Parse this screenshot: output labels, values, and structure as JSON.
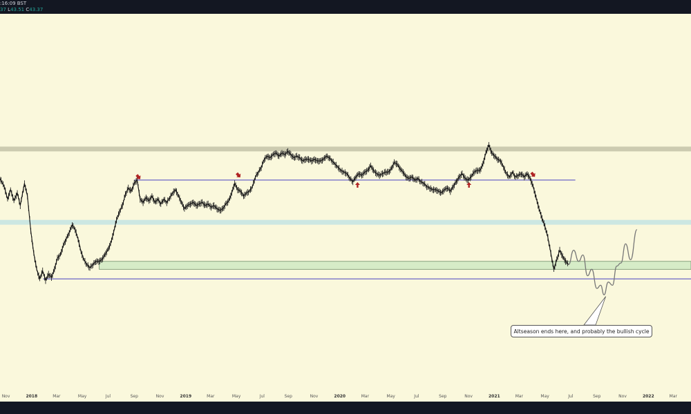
{
  "header": {
    "time_text": ":16:09 BST",
    "ohlc_text": [
      {
        "label": "37",
        "value": ""
      },
      {
        "label": "L",
        "value": "43.51"
      },
      {
        "label": "C",
        "value": "43.37"
      }
    ]
  },
  "annotation": {
    "text": "Altseason ends here, and probably the bullish cycle"
  },
  "chart_data": {
    "type": "line",
    "title": "",
    "x_axis": {
      "range": [
        "2017-10-18",
        "2022-04-12"
      ],
      "ticks": [
        {
          "label": "Nov",
          "date": "2017-11-01",
          "year": false
        },
        {
          "label": "2018",
          "date": "2018-01-01",
          "year": true
        },
        {
          "label": "Mar",
          "date": "2018-03-01",
          "year": false
        },
        {
          "label": "May",
          "date": "2018-05-01",
          "year": false
        },
        {
          "label": "Jul",
          "date": "2018-07-01",
          "year": false
        },
        {
          "label": "Sep",
          "date": "2018-09-01",
          "year": false
        },
        {
          "label": "Nov",
          "date": "2018-11-01",
          "year": false
        },
        {
          "label": "2019",
          "date": "2019-01-01",
          "year": true
        },
        {
          "label": "Mar",
          "date": "2019-03-01",
          "year": false
        },
        {
          "label": "May",
          "date": "2019-05-01",
          "year": false
        },
        {
          "label": "Jul",
          "date": "2019-07-01",
          "year": false
        },
        {
          "label": "Sep",
          "date": "2019-09-01",
          "year": false
        },
        {
          "label": "Nov",
          "date": "2019-11-01",
          "year": false
        },
        {
          "label": "2020",
          "date": "2020-01-01",
          "year": true
        },
        {
          "label": "Mar",
          "date": "2020-03-01",
          "year": false
        },
        {
          "label": "May",
          "date": "2020-05-01",
          "year": false
        },
        {
          "label": "Jul",
          "date": "2020-07-01",
          "year": false
        },
        {
          "label": "Sep",
          "date": "2020-09-01",
          "year": false
        },
        {
          "label": "Nov",
          "date": "2020-11-01",
          "year": false
        },
        {
          "label": "2021",
          "date": "2021-01-01",
          "year": true
        },
        {
          "label": "Mar",
          "date": "2021-03-01",
          "year": false
        },
        {
          "label": "May",
          "date": "2021-05-01",
          "year": false
        },
        {
          "label": "Jul",
          "date": "2021-07-01",
          "year": false
        },
        {
          "label": "Sep",
          "date": "2021-09-01",
          "year": false
        },
        {
          "label": "Nov",
          "date": "2021-11-01",
          "year": false
        },
        {
          "label": "2022",
          "date": "2022-01-01",
          "year": true
        },
        {
          "label": "Mar",
          "date": "2022-03-01",
          "year": false
        }
      ]
    },
    "y_axis": {
      "range": [
        0,
        100
      ],
      "labels_visible": false
    },
    "grid": false,
    "series": [
      {
        "kind": "price",
        "points": [
          [
            "2017-10-18",
            85
          ],
          [
            "2017-10-28",
            80
          ],
          [
            "2017-11-05",
            72
          ],
          [
            "2017-11-12",
            78
          ],
          [
            "2017-11-20",
            71
          ],
          [
            "2017-11-28",
            76
          ],
          [
            "2017-12-05",
            68
          ],
          [
            "2017-12-15",
            82
          ],
          [
            "2017-12-22",
            74
          ],
          [
            "2017-12-30",
            52
          ],
          [
            "2018-01-06",
            38
          ],
          [
            "2018-01-13",
            28
          ],
          [
            "2018-01-20",
            22
          ],
          [
            "2018-01-27",
            27
          ],
          [
            "2018-02-03",
            21
          ],
          [
            "2018-02-10",
            25
          ],
          [
            "2018-02-17",
            23
          ],
          [
            "2018-02-24",
            28
          ],
          [
            "2018-03-03",
            35
          ],
          [
            "2018-03-10",
            37
          ],
          [
            "2018-03-17",
            43
          ],
          [
            "2018-03-24",
            47
          ],
          [
            "2018-03-31",
            51
          ],
          [
            "2018-04-07",
            56
          ],
          [
            "2018-04-14",
            53
          ],
          [
            "2018-04-21",
            47
          ],
          [
            "2018-04-28",
            39
          ],
          [
            "2018-05-05",
            34
          ],
          [
            "2018-05-12",
            31
          ],
          [
            "2018-05-19",
            29
          ],
          [
            "2018-05-26",
            31
          ],
          [
            "2018-06-02",
            33
          ],
          [
            "2018-06-09",
            33
          ],
          [
            "2018-06-16",
            34
          ],
          [
            "2018-06-23",
            37
          ],
          [
            "2018-06-30",
            40
          ],
          [
            "2018-07-07",
            44
          ],
          [
            "2018-07-14",
            51
          ],
          [
            "2018-07-21",
            59
          ],
          [
            "2018-07-28",
            64
          ],
          [
            "2018-08-04",
            68
          ],
          [
            "2018-08-11",
            75
          ],
          [
            "2018-08-18",
            79
          ],
          [
            "2018-08-25",
            77
          ],
          [
            "2018-09-01",
            82
          ],
          [
            "2018-09-08",
            84
          ],
          [
            "2018-09-15",
            72
          ],
          [
            "2018-09-22",
            70
          ],
          [
            "2018-09-29",
            73
          ],
          [
            "2018-10-06",
            71
          ],
          [
            "2018-10-13",
            74
          ],
          [
            "2018-10-20",
            70
          ],
          [
            "2018-10-27",
            72
          ],
          [
            "2018-11-03",
            69
          ],
          [
            "2018-11-10",
            72
          ],
          [
            "2018-11-17",
            70
          ],
          [
            "2018-11-24",
            73
          ],
          [
            "2018-12-01",
            76
          ],
          [
            "2018-12-08",
            78
          ],
          [
            "2018-12-15",
            74
          ],
          [
            "2018-12-22",
            70
          ],
          [
            "2018-12-29",
            66
          ],
          [
            "2019-01-05",
            68
          ],
          [
            "2019-01-12",
            69
          ],
          [
            "2019-01-19",
            70
          ],
          [
            "2019-01-26",
            68
          ],
          [
            "2019-02-02",
            69
          ],
          [
            "2019-02-09",
            70
          ],
          [
            "2019-02-16",
            68
          ],
          [
            "2019-02-23",
            69
          ],
          [
            "2019-03-02",
            67
          ],
          [
            "2019-03-09",
            68
          ],
          [
            "2019-03-16",
            66
          ],
          [
            "2019-03-23",
            65
          ],
          [
            "2019-03-30",
            66
          ],
          [
            "2019-04-06",
            69
          ],
          [
            "2019-04-13",
            71
          ],
          [
            "2019-04-20",
            76
          ],
          [
            "2019-04-27",
            82
          ],
          [
            "2019-05-04",
            78
          ],
          [
            "2019-05-11",
            77
          ],
          [
            "2019-05-18",
            74
          ],
          [
            "2019-05-25",
            76
          ],
          [
            "2019-06-01",
            77
          ],
          [
            "2019-06-08",
            80
          ],
          [
            "2019-06-15",
            86
          ],
          [
            "2019-06-22",
            89
          ],
          [
            "2019-06-29",
            92
          ],
          [
            "2019-07-06",
            97
          ],
          [
            "2019-07-13",
            99
          ],
          [
            "2019-07-20",
            98
          ],
          [
            "2019-07-27",
            100
          ],
          [
            "2019-08-03",
            101
          ],
          [
            "2019-08-10",
            99
          ],
          [
            "2019-08-17",
            101
          ],
          [
            "2019-08-24",
            100
          ],
          [
            "2019-08-31",
            102
          ],
          [
            "2019-09-07",
            100
          ],
          [
            "2019-09-14",
            98
          ],
          [
            "2019-09-21",
            99
          ],
          [
            "2019-09-28",
            98
          ],
          [
            "2019-10-05",
            96
          ],
          [
            "2019-10-12",
            97
          ],
          [
            "2019-10-19",
            97
          ],
          [
            "2019-10-26",
            96
          ],
          [
            "2019-11-02",
            97
          ],
          [
            "2019-11-09",
            96
          ],
          [
            "2019-11-16",
            96
          ],
          [
            "2019-11-23",
            97
          ],
          [
            "2019-11-30",
            99
          ],
          [
            "2019-12-07",
            98
          ],
          [
            "2019-12-14",
            96
          ],
          [
            "2019-12-21",
            94
          ],
          [
            "2019-12-28",
            92
          ],
          [
            "2020-01-04",
            90
          ],
          [
            "2020-01-11",
            89
          ],
          [
            "2020-01-18",
            88
          ],
          [
            "2020-01-25",
            85
          ],
          [
            "2020-02-01",
            83
          ],
          [
            "2020-02-08",
            86
          ],
          [
            "2020-02-15",
            88
          ],
          [
            "2020-02-22",
            87
          ],
          [
            "2020-02-29",
            89
          ],
          [
            "2020-03-07",
            90
          ],
          [
            "2020-03-14",
            93
          ],
          [
            "2020-03-21",
            90
          ],
          [
            "2020-03-28",
            88
          ],
          [
            "2020-04-04",
            87
          ],
          [
            "2020-04-11",
            88
          ],
          [
            "2020-04-18",
            89
          ],
          [
            "2020-04-25",
            89
          ],
          [
            "2020-05-02",
            91
          ],
          [
            "2020-05-09",
            95
          ],
          [
            "2020-05-16",
            94
          ],
          [
            "2020-05-23",
            91
          ],
          [
            "2020-05-30",
            89
          ],
          [
            "2020-06-06",
            86
          ],
          [
            "2020-06-13",
            85
          ],
          [
            "2020-06-20",
            86
          ],
          [
            "2020-06-27",
            84
          ],
          [
            "2020-07-04",
            85
          ],
          [
            "2020-07-11",
            83
          ],
          [
            "2020-07-18",
            82
          ],
          [
            "2020-07-25",
            80
          ],
          [
            "2020-08-01",
            79
          ],
          [
            "2020-08-08",
            78
          ],
          [
            "2020-08-15",
            78
          ],
          [
            "2020-08-22",
            77
          ],
          [
            "2020-08-29",
            76
          ],
          [
            "2020-09-05",
            78
          ],
          [
            "2020-09-12",
            79
          ],
          [
            "2020-09-19",
            77
          ],
          [
            "2020-09-26",
            80
          ],
          [
            "2020-10-03",
            83
          ],
          [
            "2020-10-10",
            86
          ],
          [
            "2020-10-17",
            88
          ],
          [
            "2020-10-24",
            85
          ],
          [
            "2020-10-31",
            84
          ],
          [
            "2020-11-07",
            86
          ],
          [
            "2020-11-14",
            89
          ],
          [
            "2020-11-21",
            90
          ],
          [
            "2020-11-28",
            90
          ],
          [
            "2020-12-05",
            94
          ],
          [
            "2020-12-12",
            101
          ],
          [
            "2020-12-19",
            106
          ],
          [
            "2020-12-26",
            101
          ],
          [
            "2021-01-02",
            99
          ],
          [
            "2021-01-09",
            97
          ],
          [
            "2021-01-16",
            96
          ],
          [
            "2021-01-23",
            92
          ],
          [
            "2021-01-30",
            88
          ],
          [
            "2021-02-06",
            86
          ],
          [
            "2021-02-13",
            89
          ],
          [
            "2021-02-20",
            86
          ],
          [
            "2021-02-27",
            87
          ],
          [
            "2021-03-06",
            88
          ],
          [
            "2021-03-13",
            86
          ],
          [
            "2021-03-20",
            88
          ],
          [
            "2021-03-27",
            85
          ],
          [
            "2021-04-03",
            80
          ],
          [
            "2021-04-10",
            73
          ],
          [
            "2021-04-17",
            66
          ],
          [
            "2021-04-24",
            60
          ],
          [
            "2021-05-01",
            55
          ],
          [
            "2021-05-08",
            48
          ],
          [
            "2021-05-15",
            38
          ],
          [
            "2021-05-22",
            28
          ],
          [
            "2021-05-29",
            34
          ],
          [
            "2021-06-05",
            40
          ],
          [
            "2021-06-12",
            36
          ],
          [
            "2021-06-19",
            33
          ],
          [
            "2021-06-26",
            31
          ]
        ]
      },
      {
        "kind": "projection",
        "points": [
          [
            "2021-06-26",
            31
          ],
          [
            "2021-07-08",
            40
          ],
          [
            "2021-07-20",
            33
          ],
          [
            "2021-07-30",
            37
          ],
          [
            "2021-08-10",
            24
          ],
          [
            "2021-08-20",
            28
          ],
          [
            "2021-09-01",
            16
          ],
          [
            "2021-09-10",
            18
          ],
          [
            "2021-09-18",
            12
          ],
          [
            "2021-09-28",
            20
          ],
          [
            "2021-10-08",
            18
          ],
          [
            "2021-10-18",
            30
          ],
          [
            "2021-10-28",
            32
          ],
          [
            "2021-11-08",
            44
          ],
          [
            "2021-11-20",
            34
          ],
          [
            "2021-12-05",
            53
          ]
        ]
      }
    ],
    "zones": [
      {
        "kind": "supply",
        "y0": 102,
        "y1": 105,
        "x0": "2017-10-18",
        "x1": "2022-04-12",
        "color": "#cccbb0"
      },
      {
        "kind": "resistance",
        "y0": 56,
        "y1": 59,
        "x0": "2017-10-18",
        "x1": "2022-04-12",
        "color": "#cce7e2"
      },
      {
        "kind": "support",
        "y0": 28,
        "y1": 33,
        "x0": "2018-06-10",
        "x1": "2022-04-12",
        "color": "#d6ecc7"
      }
    ],
    "levels": [
      {
        "y": 84,
        "x0": "2018-09-01",
        "x1": "2021-07-12",
        "color": "#5b55c4"
      },
      {
        "y": 22,
        "x0": "2018-01-28",
        "x1": "2022-04-12",
        "color": "#5b55c4"
      }
    ],
    "markers": [
      {
        "kind": "down",
        "date": "2018-09-10",
        "y": 86.2,
        "color": "#b02424"
      },
      {
        "kind": "down",
        "date": "2019-05-05",
        "y": 87.3,
        "color": "#b02424"
      },
      {
        "kind": "down",
        "date": "2021-04-02",
        "y": 87.7,
        "color": "#b02424"
      },
      {
        "kind": "up",
        "date": "2020-02-12",
        "y": 80.5,
        "color": "#b02424"
      },
      {
        "kind": "up",
        "date": "2020-11-02",
        "y": 80.5,
        "color": "#b02424"
      }
    ],
    "callout_anchor": {
      "date": "2021-09-22",
      "y": 11
    }
  }
}
